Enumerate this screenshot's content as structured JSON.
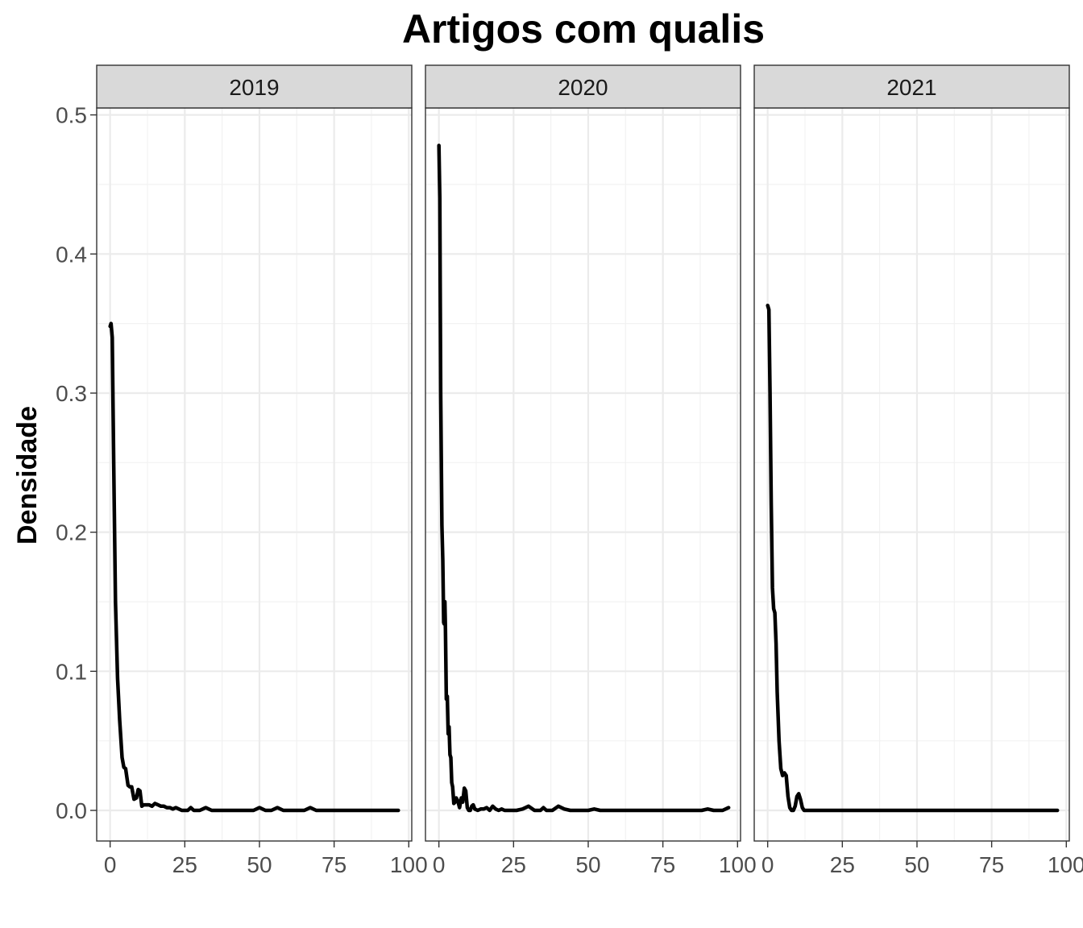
{
  "chart_data": {
    "type": "line",
    "title": "Artigos com qualis",
    "xlabel": "",
    "ylabel": "Densidade",
    "xlim": [
      -4.5,
      101
    ],
    "ylim": [
      -0.022,
      0.505
    ],
    "x_ticks": [
      0,
      25,
      50,
      75,
      100
    ],
    "x_tick_labels": [
      "0",
      "25",
      "50",
      "75",
      "100"
    ],
    "y_ticks": [
      0.0,
      0.1,
      0.2,
      0.3,
      0.4,
      0.5
    ],
    "y_tick_labels": [
      "0.0",
      "0.1",
      "0.2",
      "0.3",
      "0.4",
      "0.5"
    ],
    "grid": true,
    "legend": "none",
    "colors": {
      "line": "#000000",
      "panel_border": "#333333",
      "strip_fill": "#d9d9d9",
      "grid_major": "#ebebeb",
      "grid_minor": "#f2f2f2",
      "tick_text": "#4d4d4d"
    },
    "panels": [
      {
        "strip": "2019",
        "x": [
          0,
          0.3,
          0.7,
          1.2,
          1.8,
          2.5,
          3.2,
          4,
          4.6,
          5.2,
          6,
          6.6,
          7.2,
          8,
          8.8,
          9.4,
          10,
          10.6,
          11.2,
          12,
          13,
          14,
          15,
          16,
          17,
          18,
          19,
          20,
          21,
          22,
          24,
          26,
          27,
          28,
          30,
          32,
          34,
          36,
          40,
          45,
          48,
          50,
          52,
          54,
          56,
          58,
          60,
          65,
          67,
          69,
          75,
          80,
          85,
          90,
          96.5
        ],
        "y": [
          0.348,
          0.35,
          0.34,
          0.25,
          0.15,
          0.095,
          0.065,
          0.038,
          0.031,
          0.03,
          0.018,
          0.017,
          0.017,
          0.008,
          0.009,
          0.015,
          0.014,
          0.003,
          0.004,
          0.004,
          0.004,
          0.003,
          0.005,
          0.004,
          0.003,
          0.003,
          0.002,
          0.002,
          0.001,
          0.002,
          0.0,
          0.0,
          0.002,
          0.0,
          0.0,
          0.002,
          0.0,
          0.0,
          0.0,
          0.0,
          0.0,
          0.002,
          0.0,
          0.0,
          0.002,
          0.0,
          0.0,
          0.0,
          0.002,
          0.0,
          0.0,
          0.0,
          0.0,
          0.0,
          0.0
        ]
      },
      {
        "strip": "2020",
        "x": [
          0,
          0.3,
          0.6,
          1.0,
          1.3,
          1.6,
          1.8,
          2.0,
          2.2,
          2.5,
          2.8,
          3.1,
          3.4,
          3.7,
          4.0,
          4.3,
          4.6,
          5.0,
          5.4,
          5.8,
          6.3,
          6.9,
          7.5,
          8.0,
          8.5,
          9.0,
          9.5,
          10.0,
          10.5,
          11.0,
          11.5,
          12.0,
          13,
          14,
          15,
          16,
          17,
          18,
          19,
          20,
          21,
          22,
          24,
          26,
          28,
          30,
          32,
          34,
          35,
          36,
          38,
          40,
          42,
          44,
          50,
          52,
          54,
          60,
          70,
          80,
          88,
          90,
          92,
          95,
          97
        ],
        "y": [
          0.478,
          0.44,
          0.3,
          0.205,
          0.18,
          0.135,
          0.134,
          0.15,
          0.13,
          0.08,
          0.082,
          0.055,
          0.06,
          0.04,
          0.038,
          0.02,
          0.017,
          0.005,
          0.006,
          0.009,
          0.007,
          0.002,
          0.009,
          0.006,
          0.016,
          0.014,
          0.002,
          0.0,
          0.0,
          0.003,
          0.004,
          0.001,
          0.0,
          0.001,
          0.001,
          0.002,
          0.0,
          0.003,
          0.001,
          0.0,
          0.001,
          0.0,
          0.0,
          0.0,
          0.001,
          0.003,
          0.0,
          0.0,
          0.002,
          0.0,
          0.0,
          0.003,
          0.001,
          0.0,
          0.0,
          0.001,
          0.0,
          0.0,
          0.0,
          0.0,
          0.0,
          0.001,
          0.0,
          0.0,
          0.002
        ]
      },
      {
        "strip": "2021",
        "x": [
          0,
          0.4,
          0.8,
          1.2,
          1.6,
          2.0,
          2.4,
          2.8,
          3.2,
          3.8,
          4.4,
          5.0,
          5.6,
          6.2,
          6.8,
          7.4,
          8.0,
          8.6,
          9.2,
          9.8,
          10.4,
          11.0,
          11.6,
          12.2,
          13,
          14,
          15,
          20,
          30,
          40,
          50,
          60,
          70,
          80,
          90,
          97
        ],
        "y": [
          0.363,
          0.36,
          0.3,
          0.22,
          0.16,
          0.145,
          0.142,
          0.12,
          0.085,
          0.05,
          0.03,
          0.025,
          0.027,
          0.025,
          0.01,
          0.002,
          0.0,
          0.0,
          0.003,
          0.01,
          0.012,
          0.008,
          0.002,
          0.0,
          0.0,
          0.0,
          0.0,
          0.0,
          0.0,
          0.0,
          0.0,
          0.0,
          0.0,
          0.0,
          0.0,
          0.0
        ]
      }
    ]
  }
}
